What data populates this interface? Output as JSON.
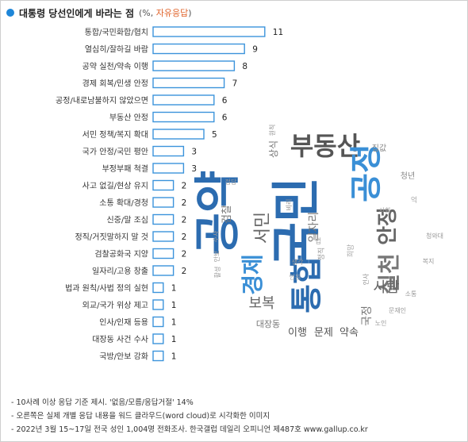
{
  "header": {
    "title": "대통령 당선인에게 바라는 점",
    "subtitle_prefix": "(%, ",
    "subtitle_accent": "자유응답",
    "subtitle_suffix": ")"
  },
  "chart_data": {
    "type": "bar",
    "orientation": "horizontal",
    "categories": [
      "통합/국민화합/협치",
      "열심히/잘하길 바람",
      "공약 실천/약속 이행",
      "경제 회복/민생 안정",
      "공정/내로남불하지 않았으면",
      "부동산 안정",
      "서민 정책/복지 확대",
      "국가 안정/국민 평안",
      "부정부패 척결",
      "사고 없길/현상 유지",
      "소통 확대/경청",
      "신중/말 조심",
      "정직/거짓말하지 말 것",
      "검찰공화국 지양",
      "일자리/고용 창출",
      "법과 원칙/사법 정의 실현",
      "외교/국가 위상 제고",
      "인사/인재 등용",
      "대장동 사건 수사",
      "국방/안보 강화"
    ],
    "values": [
      11,
      9,
      8,
      7,
      6,
      6,
      5,
      3,
      3,
      2,
      2,
      2,
      2,
      2,
      2,
      1,
      1,
      1,
      1,
      1
    ],
    "colors": {
      "bar_fill": "#ffffff",
      "bar_stroke": "#3b93db"
    }
  },
  "word_cloud": [
    {
      "word": "공약",
      "color": "#2c6cb0"
    },
    {
      "word": "국민",
      "color": "#2c6cb0"
    },
    {
      "word": "통합",
      "color": "#2c6cb0"
    },
    {
      "word": "부동산",
      "color": "#555555"
    },
    {
      "word": "공정",
      "color": "#3a8fd6"
    },
    {
      "word": "안정",
      "color": "#666666"
    },
    {
      "word": "경제",
      "color": "#3a8fd6"
    },
    {
      "word": "실천",
      "color": "#777777"
    },
    {
      "word": "서민",
      "color": "#666666"
    },
    {
      "word": "사람",
      "color": "#666666"
    },
    {
      "word": "보복",
      "color": "#666666"
    },
    {
      "word": "이행",
      "color": "#555555"
    },
    {
      "word": "문제",
      "color": "#555555"
    },
    {
      "word": "약속",
      "color": "#555555"
    },
    {
      "word": "일자리",
      "color": "#777777"
    },
    {
      "word": "국정",
      "color": "#777777"
    },
    {
      "word": "대장동",
      "color": "#777777"
    },
    {
      "word": "상식",
      "color": "#777777"
    },
    {
      "word": "검찰",
      "color": "#777777"
    },
    {
      "word": "집값",
      "color": "#888888"
    },
    {
      "word": "청년",
      "color": "#888888"
    },
    {
      "word": "원칙",
      "color": "#999999"
    },
    {
      "word": "정당",
      "color": "#999999"
    },
    {
      "word": "비리",
      "color": "#999999"
    },
    {
      "word": "사회",
      "color": "#999999"
    },
    {
      "word": "안보",
      "color": "#999999"
    },
    {
      "word": "활성",
      "color": "#999999"
    },
    {
      "word": "수사",
      "color": "#999999"
    },
    {
      "word": "생각",
      "color": "#999999"
    },
    {
      "word": "정직",
      "color": "#999999"
    },
    {
      "word": "인사",
      "color": "#999999"
    },
    {
      "word": "청와대",
      "color": "#999999"
    },
    {
      "word": "복지",
      "color": "#999999"
    },
    {
      "word": "소통",
      "color": "#999999"
    },
    {
      "word": "문재인",
      "color": "#999999"
    },
    {
      "word": "노인",
      "color": "#999999"
    },
    {
      "word": "희망",
      "color": "#aaaaaa"
    },
    {
      "word": "법",
      "color": "#aaaaaa"
    },
    {
      "word": "억",
      "color": "#aaaaaa"
    },
    {
      "word": "인원",
      "color": "#aaaaaa"
    }
  ],
  "footer": {
    "note1": "- 10사례 이상 응답 기준 제시. '없음/모름/응답거절' 14%",
    "note2": "- 오른쪽은 실제 개별 응답 내용을 워드 클라우드(word cloud)로 시각화한 이미지",
    "note3": "- 2022년 3월 15~17일 전국 성인 1,004명 전화조사. 한국갤럽 데일리 오피니언 제487호 www.gallup.co.kr"
  }
}
